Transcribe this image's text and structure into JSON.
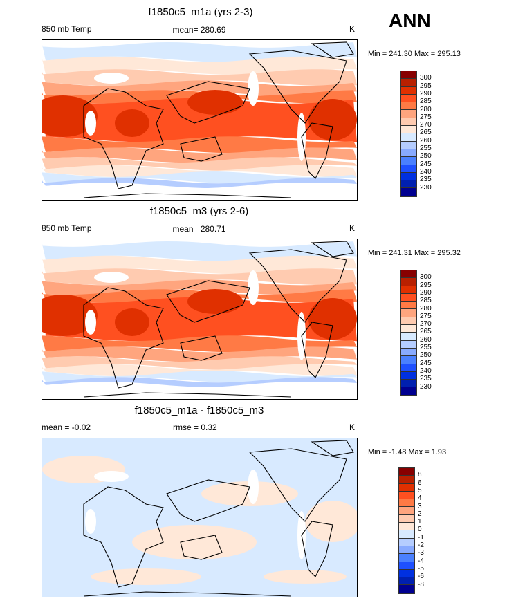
{
  "season": "ANN",
  "palette": [
    "#870000",
    "#b82000",
    "#e03000",
    "#ff5020",
    "#ff7a45",
    "#ffa57e",
    "#ffcbb0",
    "#ffe8d8",
    "#d8eaff",
    "#b5cdff",
    "#88aaff",
    "#4a80ff",
    "#1e50ff",
    "#0030e0",
    "#0020b0",
    "#000090"
  ],
  "panels": [
    {
      "title": "f1850c5_m1a (yrs 2-3)",
      "variable": "850 mb Temp",
      "stat": "mean= 280.69",
      "units": "K",
      "minmax": "Min = 241.30 Max = 295.13",
      "levels": [
        "300",
        "295",
        "290",
        "285",
        "280",
        "275",
        "270",
        "265",
        "260",
        "255",
        "250",
        "245",
        "240",
        "235",
        "230"
      ]
    },
    {
      "title": "f1850c5_m3 (yrs 2-6)",
      "variable": "850 mb Temp",
      "stat": "mean= 280.71",
      "units": "K",
      "minmax": "Min = 241.31 Max = 295.32",
      "levels": [
        "300",
        "295",
        "290",
        "285",
        "280",
        "275",
        "270",
        "265",
        "260",
        "255",
        "250",
        "245",
        "240",
        "235",
        "230"
      ]
    },
    {
      "title": "f1850c5_m1a - f1850c5_m3",
      "variable": "mean =  -0.02",
      "stat": "rmse =  0.32",
      "units": "K",
      "minmax": "Min =  -1.48 Max =   1.93",
      "levels": [
        "8",
        "6",
        "5",
        "4",
        "3",
        "2",
        "1",
        "0",
        "-1",
        "-2",
        "-3",
        "-4",
        "-5",
        "-6",
        "-8"
      ]
    }
  ]
}
